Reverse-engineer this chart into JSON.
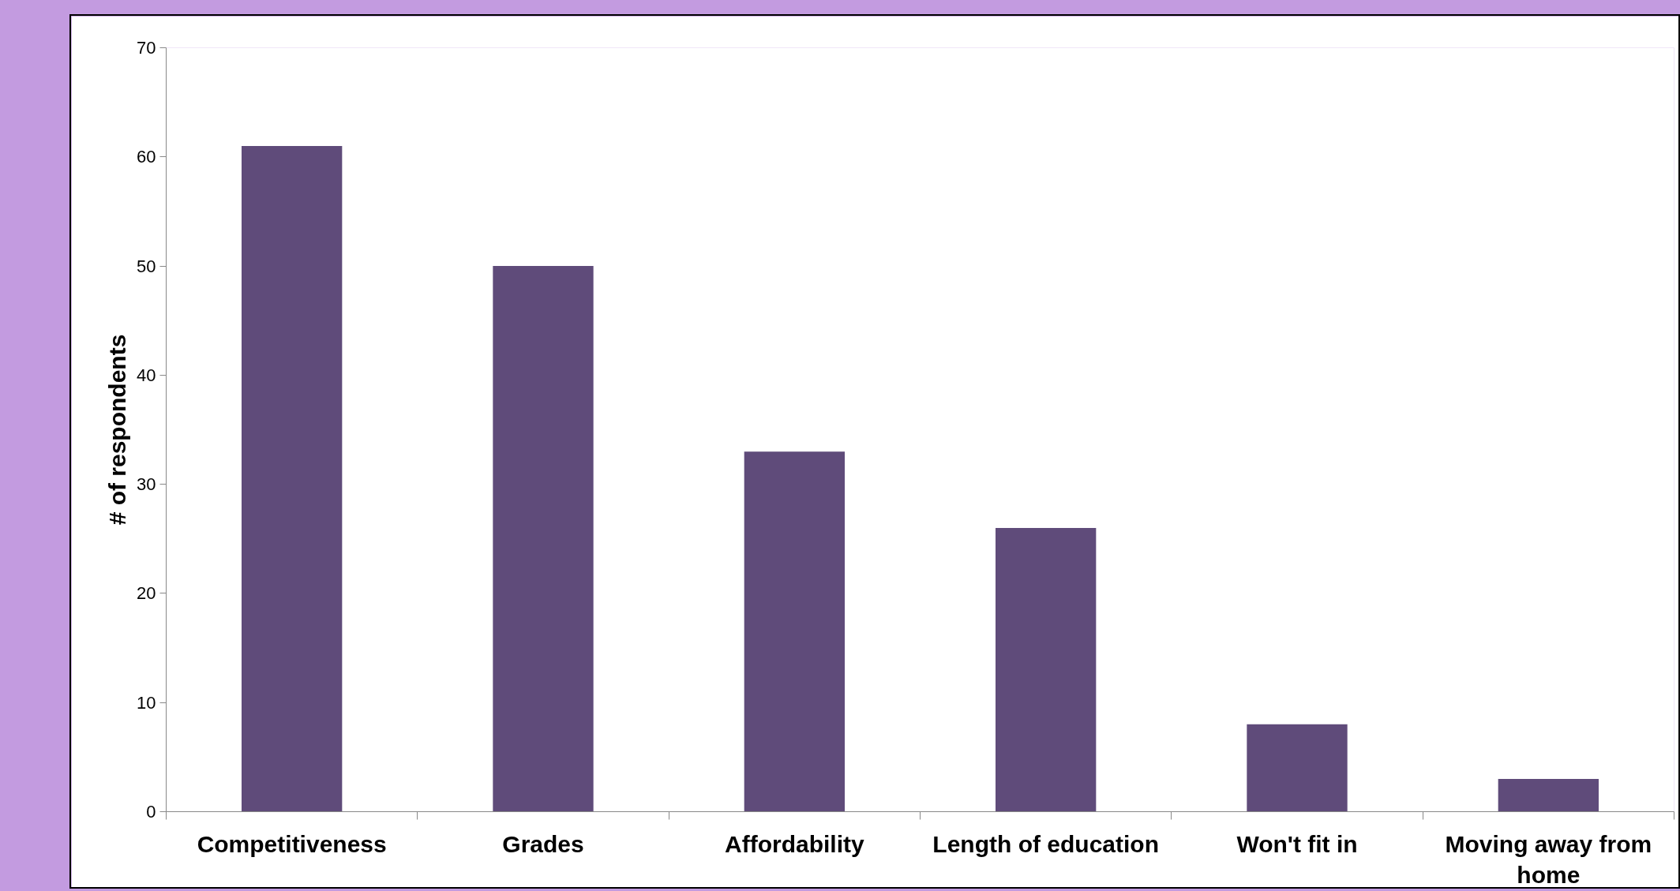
{
  "chart_data": {
    "type": "bar",
    "ylabel": "# of respondents",
    "categories": [
      "Competitiveness",
      "Grades",
      "Affordability",
      "Length of education",
      "Won't fit in",
      "Moving away from home"
    ],
    "values": [
      61,
      50,
      33,
      26,
      8,
      3
    ],
    "color": "#5f4b7a",
    "ylim": [
      0,
      70
    ],
    "yticks": [
      0,
      10,
      20,
      30,
      40,
      50,
      60,
      70
    ],
    "grid": false
  }
}
